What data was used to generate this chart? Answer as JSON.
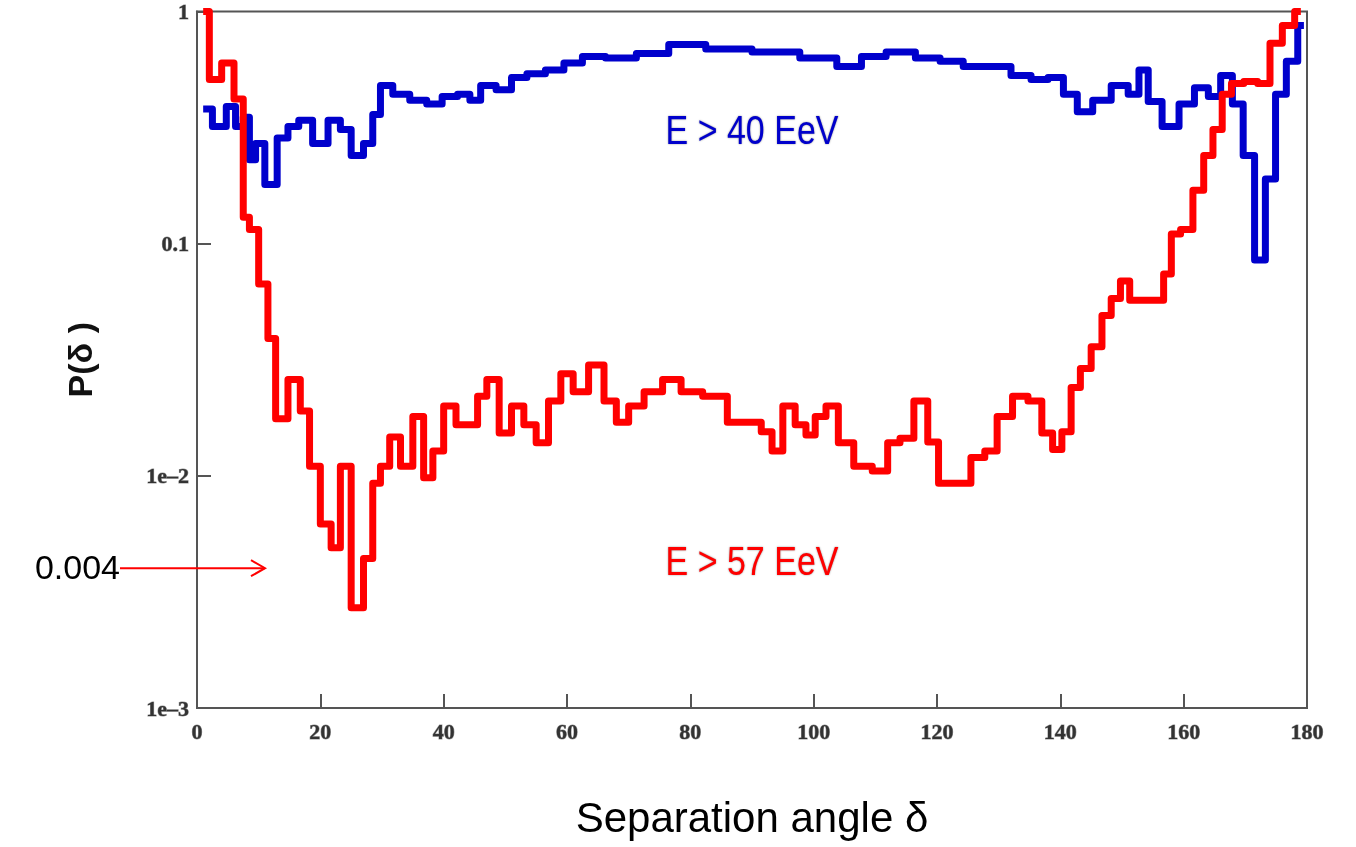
{
  "chart_data": {
    "type": "step",
    "xlabel": "Separation angle δ",
    "ylabel": "P(δ )",
    "log": "y",
    "grid": false,
    "legend": false,
    "marker": "none",
    "xlim": [
      0,
      180
    ],
    "xticks": [
      0,
      20,
      40,
      60,
      80,
      100,
      120,
      140,
      160,
      180
    ],
    "ylim": [
      0.001,
      1
    ],
    "yticks": [
      1,
      0.1,
      {
        "value": 0.01,
        "label": "1e–2"
      },
      {
        "value": 0.001,
        "label": "1e–3"
      }
    ],
    "annotations": [
      "0.004"
    ],
    "series": [
      {
        "name": "E > 40 EeV",
        "color": "#0000cc",
        "x": [
          1,
          4,
          5.5,
          7,
          8,
          9,
          10,
          12,
          14,
          15.5,
          17.5,
          20,
          22.5,
          24,
          26,
          28,
          29,
          30.5,
          33,
          36,
          38.5,
          41,
          43.5,
          45,
          47,
          50,
          52,
          55,
          58,
          61,
          64,
          68.5,
          74,
          79,
          86,
          94,
          101.5,
          106,
          109.5,
          114,
          119,
          122,
          126.5,
          130,
          134,
          136.5,
          139.5,
          141.5,
          144,
          146.5,
          150,
          152,
          153.5,
          155,
          158,
          160.5,
          163,
          165,
          167,
          168.8,
          170.5,
          172.5,
          174,
          175.8,
          177.5,
          179.5
        ],
        "values": [
          0.38,
          0.32,
          0.39,
          0.32,
          0.35,
          0.23,
          0.27,
          0.18,
          0.285,
          0.32,
          0.34,
          0.27,
          0.34,
          0.31,
          0.24,
          0.27,
          0.36,
          0.48,
          0.44,
          0.415,
          0.4,
          0.43,
          0.44,
          0.415,
          0.48,
          0.46,
          0.52,
          0.54,
          0.56,
          0.6,
          0.64,
          0.63,
          0.66,
          0.72,
          0.69,
          0.67,
          0.63,
          0.58,
          0.64,
          0.67,
          0.63,
          0.61,
          0.58,
          0.58,
          0.53,
          0.51,
          0.52,
          0.44,
          0.37,
          0.415,
          0.48,
          0.44,
          0.56,
          0.41,
          0.32,
          0.4,
          0.47,
          0.43,
          0.53,
          0.4,
          0.24,
          0.085,
          0.19,
          0.44,
          0.61,
          0.87
        ]
      },
      {
        "name": "E > 57 EeV",
        "color": "#ff0000",
        "x": [
          1,
          3,
          5,
          7,
          8,
          9,
          11,
          12,
          13.5,
          16,
          17.5,
          19,
          21,
          22.5,
          24,
          26,
          28,
          29,
          30.5,
          32,
          34,
          36,
          37.5,
          39,
          41,
          43,
          45,
          46,
          48,
          50,
          52,
          54,
          56,
          58,
          60,
          62,
          65,
          67,
          69,
          71,
          74,
          77,
          80,
          84,
          88,
          90.5,
          92.5,
          94,
          96,
          98,
          99.5,
          101,
          103,
          105,
          108,
          111,
          113,
          115,
          117.5,
          119.5,
          121,
          124,
          127,
          128.5,
          131,
          133.5,
          136,
          138,
          139.5,
          141,
          142.5,
          144,
          146,
          147.5,
          149,
          150.5,
          152,
          154,
          156,
          157.5,
          158.5,
          160.5,
          162.5,
          164,
          165.5,
          167,
          168.5,
          171,
          173,
          175,
          177,
          179
        ],
        "values": [
          1.0,
          0.51,
          0.6,
          0.42,
          0.13,
          0.115,
          0.067,
          0.039,
          0.0176,
          0.026,
          0.019,
          0.011,
          0.0062,
          0.0049,
          0.011,
          0.0027,
          0.0044,
          0.0093,
          0.011,
          0.0147,
          0.011,
          0.018,
          0.0098,
          0.0128,
          0.02,
          0.0166,
          0.0166,
          0.022,
          0.026,
          0.0153,
          0.02,
          0.0166,
          0.0139,
          0.021,
          0.0275,
          0.023,
          0.03,
          0.021,
          0.017,
          0.02,
          0.023,
          0.026,
          0.023,
          0.022,
          0.017,
          0.017,
          0.0155,
          0.0128,
          0.02,
          0.0166,
          0.015,
          0.018,
          0.02,
          0.0139,
          0.011,
          0.0105,
          0.0139,
          0.0145,
          0.021,
          0.014,
          0.0093,
          0.0093,
          0.012,
          0.0128,
          0.018,
          0.022,
          0.021,
          0.0153,
          0.013,
          0.0155,
          0.024,
          0.029,
          0.036,
          0.049,
          0.058,
          0.069,
          0.057,
          0.057,
          0.057,
          0.074,
          0.11,
          0.115,
          0.17,
          0.24,
          0.31,
          0.44,
          0.49,
          0.5,
          0.49,
          0.73,
          0.87,
          1.0
        ]
      }
    ]
  }
}
